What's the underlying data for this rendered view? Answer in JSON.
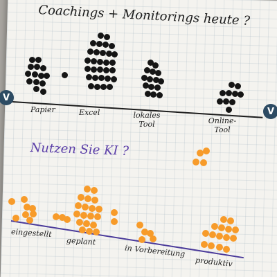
{
  "flipchart": {
    "question_1": "Coachings + Monitorings heute ?",
    "tools": [
      {
        "label": "Papier",
        "votes": 14
      },
      {
        "label": "Excel",
        "votes": 30
      },
      {
        "label": "lokales Tool",
        "votes": 15
      },
      {
        "label": "Online-Tool",
        "votes": 10
      }
    ],
    "question_2": "Nutzen Sie KI ?",
    "ai_usage": [
      {
        "label": "eingestellt",
        "votes": 8
      },
      {
        "label": "geplant",
        "votes": 22
      },
      {
        "label": "in Vorbereitung",
        "votes": 5
      },
      {
        "label": "produktiv",
        "votes": 15
      }
    ],
    "badge_symbol": "V",
    "colors": {
      "vote_dot_tools": "#151515",
      "vote_dot_ai": "#f79b2a",
      "ink_purple": "#4a3a9a",
      "badge": "#2d4b63"
    }
  }
}
